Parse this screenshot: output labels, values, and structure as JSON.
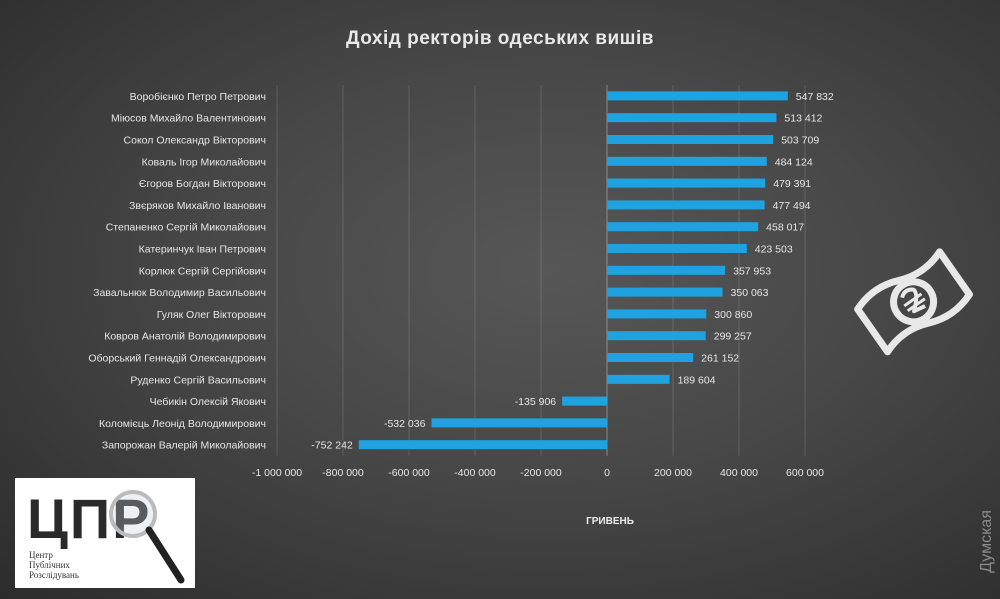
{
  "chart_data": {
    "type": "bar",
    "orientation": "horizontal",
    "title": "Дохід ректорів одеських вишів",
    "xlabel": "ГРИВЕНЬ",
    "ylabel": "",
    "xlim": [
      -1000000,
      600000
    ],
    "xticks": [
      -1000000,
      -800000,
      -600000,
      -400000,
      -200000,
      0,
      200000,
      400000,
      600000
    ],
    "xtick_labels": [
      "-1 000 000",
      "-800 000",
      "-600 000",
      "-400 000",
      "-200 000",
      "0",
      "200 000",
      "400 000",
      "600 000"
    ],
    "grid": true,
    "bar_color": "#1fa3e0",
    "categories": [
      "Воробієнко Петро Петрович",
      "Міюсов Михайло Валентинович",
      "Сокол Олександр Вікторович",
      "Коваль Ігор Миколайович",
      "Єгоров Богдан Вікторович",
      "Звєряков Михайло Іванович",
      "Степаненко Сергій Миколайович",
      "Катеринчук Іван Петрович",
      "Корлюк Сергій Сергійович",
      "Завальнюк Володимир Васильович",
      "Гуляк Олег Вікторович",
      "Ковров Анатолій Володимирович",
      "Оборський Геннадій Олександрович",
      "Руденко Сергій Васильович",
      "Чебикін Олексій Якович",
      "Коломієць Леонід Володимирович",
      "Запорожан Валерій Миколайович"
    ],
    "values": [
      547832,
      513412,
      503709,
      484124,
      479391,
      477494,
      458017,
      423503,
      357953,
      350063,
      300860,
      299257,
      261152,
      189604,
      -135906,
      -532036,
      -752242
    ],
    "value_labels": [
      "547 832",
      "513 412",
      "503 709",
      "484 124",
      "479 391",
      "477 494",
      "458 017",
      "423 503",
      "357 953",
      "350 063",
      "300 860",
      "299 257",
      "261 152",
      "189 604",
      "-135 906",
      "-532 036",
      "-752 242"
    ]
  },
  "logo": {
    "letters": "ЦПР",
    "lines": [
      "Центр",
      "Публічних",
      "Розслідувань"
    ]
  },
  "watermark": "Думская"
}
